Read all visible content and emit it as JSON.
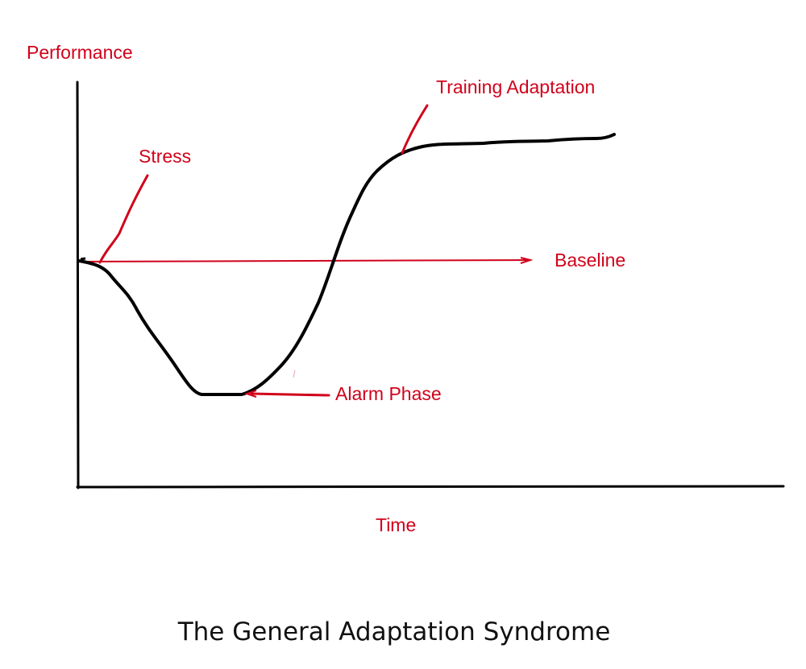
{
  "colors": {
    "annotation": "#d0021b",
    "curve": "#000000",
    "axes": "#000000",
    "caption": "#111111"
  },
  "diagram": {
    "y_axis_label": "Performance",
    "x_axis_label": "Time",
    "annotations": {
      "stress": "Stress",
      "training_adaptation": "Training Adaptation",
      "baseline": "Baseline",
      "alarm_phase": "Alarm Phase"
    },
    "caption": "The General Adaptation Syndrome"
  }
}
